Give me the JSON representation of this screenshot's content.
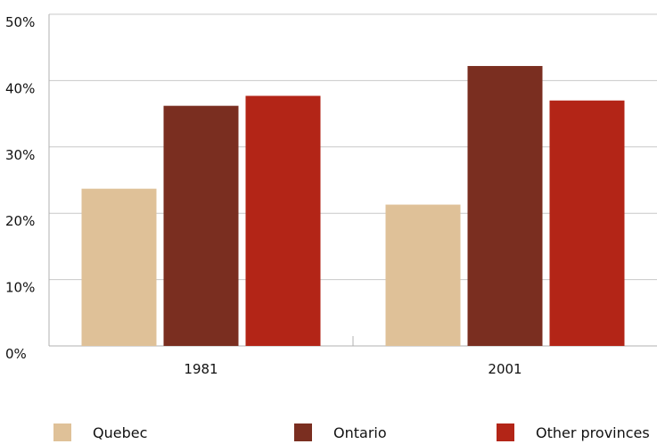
{
  "chart_data": {
    "type": "bar",
    "categories": [
      "1981",
      "2001"
    ],
    "series": [
      {
        "name": "Quebec",
        "color": "#dfc198",
        "values": [
          23.7,
          21.3
        ]
      },
      {
        "name": "Ontario",
        "color": "#7a2e20",
        "values": [
          36.2,
          42.2
        ]
      },
      {
        "name": "Other provinces",
        "color": "#b32517",
        "values": [
          37.7,
          37.0
        ]
      }
    ],
    "ylim": [
      0,
      50
    ],
    "yticks": [
      0,
      10,
      20,
      30,
      40,
      50
    ],
    "ytick_labels": [
      "0%",
      "10%",
      "20%",
      "30%",
      "40%",
      "50%"
    ],
    "title": "",
    "xlabel": "",
    "ylabel": "",
    "grid": true,
    "legend_position": "bottom"
  }
}
